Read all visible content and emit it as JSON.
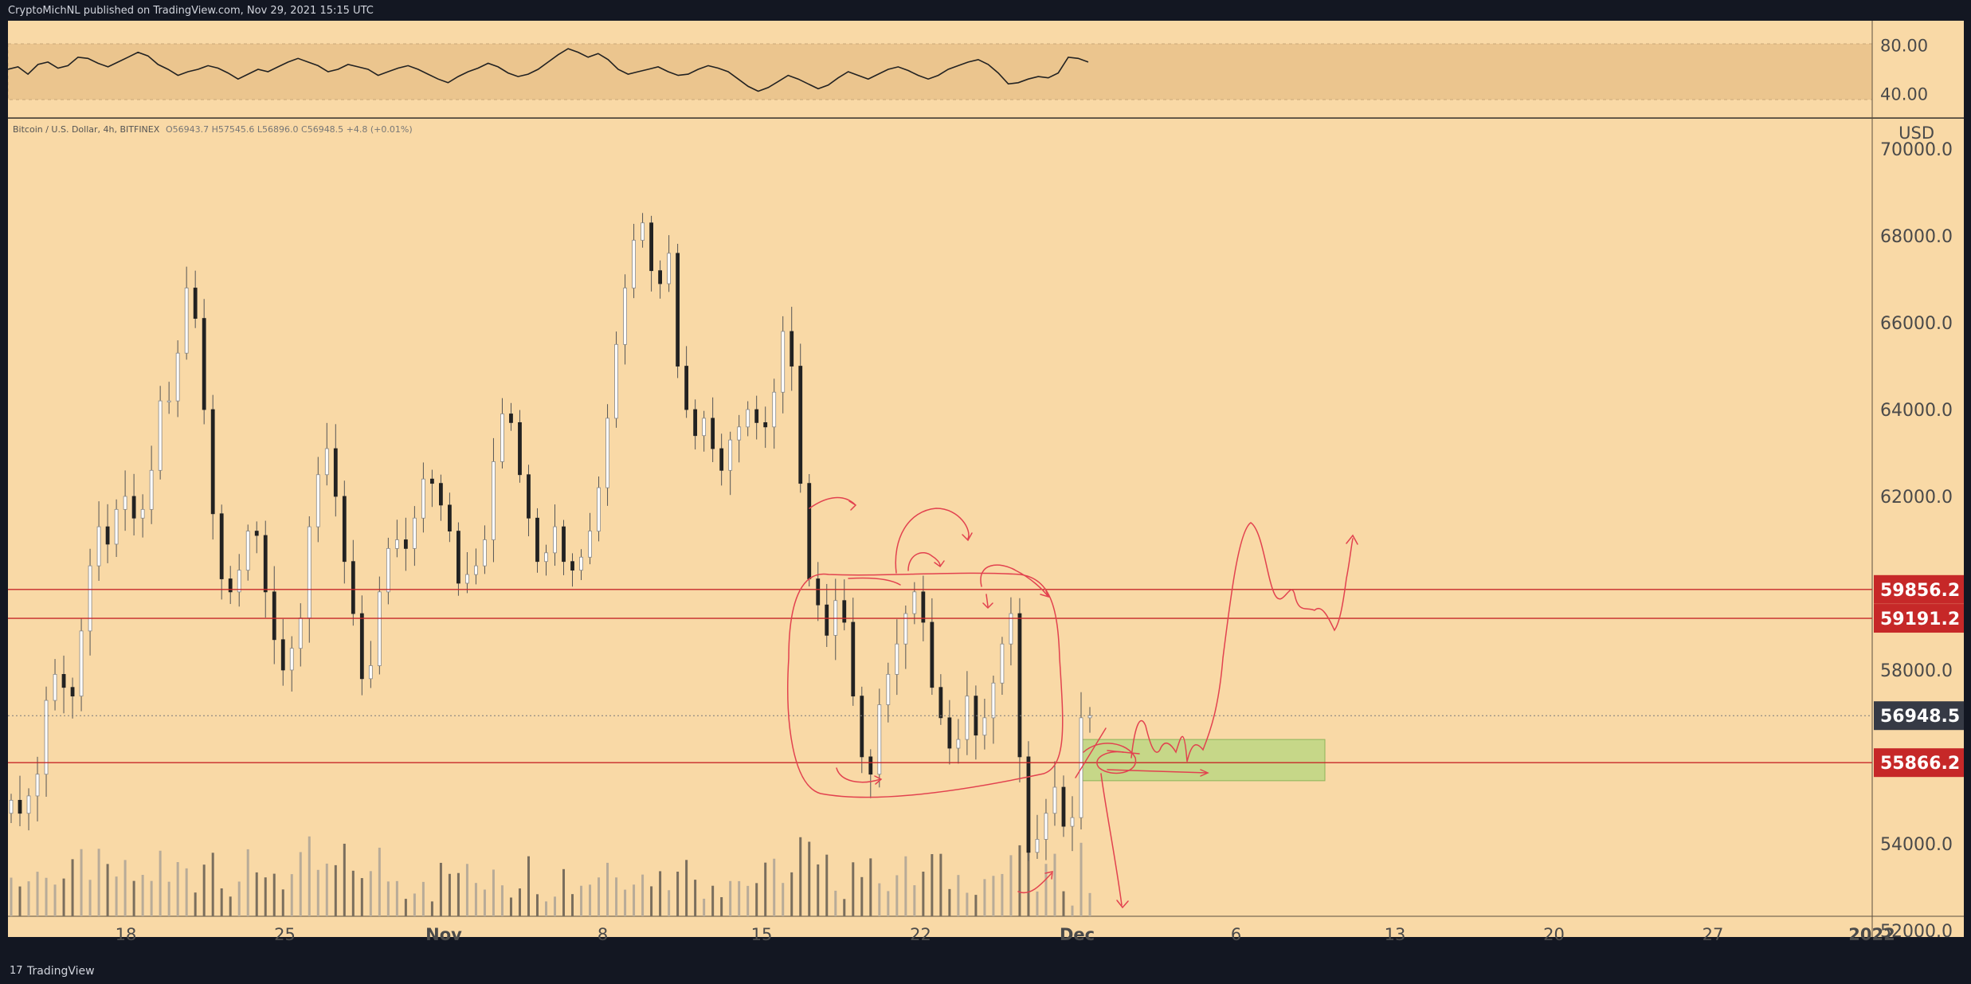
{
  "header": {
    "publisher": "CryptoMichNL published on TradingView.com, Nov 29, 2021 15:15 UTC"
  },
  "legend": {
    "symbol": "Bitcoin / U.S. Dollar, 4h, BITFINEX",
    "ohlc": "O56943.7  H57545.6  L56896.0  C56948.5  +4.8 (+0.01%)"
  },
  "footer": {
    "logo": "17",
    "brand": "TradingView"
  },
  "chart_data": [
    {
      "type": "line",
      "title": "",
      "yticks": [
        "80.00",
        "40.00"
      ],
      "ylim": [
        20,
        100
      ],
      "band": [
        35,
        75
      ],
      "values": [
        60,
        62,
        56,
        64,
        66,
        61,
        63,
        70,
        69,
        65,
        62,
        66,
        70,
        74,
        71,
        64,
        60,
        55,
        58,
        60,
        63,
        61,
        57,
        52,
        56,
        60,
        58,
        62,
        66,
        69,
        66,
        63,
        58,
        60,
        64,
        62,
        60,
        55,
        58,
        61,
        63,
        60,
        56,
        52,
        49,
        54,
        58,
        61,
        65,
        62,
        57,
        54,
        56,
        60,
        66,
        72,
        77,
        74,
        70,
        73,
        68,
        60,
        56,
        58,
        60,
        62,
        58,
        55,
        56,
        60,
        63,
        61,
        58,
        52,
        46,
        42,
        45,
        50,
        55,
        52,
        48,
        44,
        47,
        53,
        58,
        55,
        52,
        56,
        60,
        62,
        59,
        55,
        52,
        55,
        60,
        63,
        66,
        68,
        64,
        57,
        48,
        49,
        52,
        54,
        53,
        57,
        70,
        69,
        66
      ]
    },
    {
      "type": "candlestick",
      "title": "",
      "y_unit": "USD",
      "ylim": [
        51850,
        70700
      ],
      "yticks": [
        "70000.0",
        "68000.0",
        "66000.0",
        "64000.0",
        "62000.0",
        "58000.0",
        "54000.0",
        "52000.0"
      ],
      "xticks": [
        "18",
        "25",
        "Nov",
        "8",
        "15",
        "22",
        "Dec",
        "6",
        "13",
        "20",
        "27",
        "2022"
      ],
      "closes": [
        55000,
        54700,
        55100,
        55600,
        57300,
        57900,
        57600,
        57400,
        58900,
        60400,
        61300,
        60900,
        61700,
        62000,
        61500,
        61700,
        62600,
        64200,
        64200,
        65300,
        66800,
        66100,
        64000,
        61600,
        60100,
        59800,
        60300,
        61200,
        61100,
        59800,
        58700,
        58000,
        58500,
        59200,
        61300,
        62500,
        63100,
        62000,
        60500,
        59300,
        57800,
        58100,
        59800,
        60800,
        61000,
        60800,
        61500,
        62400,
        62300,
        61800,
        61200,
        60000,
        60200,
        60400,
        61000,
        62800,
        63900,
        63700,
        62500,
        61500,
        60500,
        60700,
        61300,
        60500,
        60300,
        60600,
        61200,
        62200,
        63800,
        65500,
        66800,
        67900,
        68300,
        67200,
        66900,
        67600,
        65000,
        64000,
        63400,
        63800,
        63100,
        62600,
        63300,
        63600,
        64000,
        63700,
        63600,
        64400,
        65800,
        65000,
        62300,
        60100,
        59500,
        58800,
        59600,
        59100,
        57400,
        56000,
        55600,
        57200,
        57900,
        58600,
        59300,
        59800,
        59100,
        57600,
        56900,
        56200,
        56400,
        57400,
        56500,
        56900,
        57700,
        58600,
        59300,
        56000,
        53800,
        54100,
        54700,
        55300,
        54400,
        54600,
        56900,
        56949
      ],
      "volume_max_label": "",
      "price_lines": [
        {
          "label": "59856.2",
          "value": 59856.2,
          "color": "#c62828"
        },
        {
          "label": "59191.2",
          "value": 59191.2,
          "color": "#c62828"
        },
        {
          "label": "56948.5",
          "value": 56948.5,
          "color": "#363a45"
        },
        {
          "label": "55866.2",
          "value": 55866.2,
          "color": "#c62828"
        }
      ],
      "zone": {
        "from": 55450,
        "to": 56400,
        "color": "#b4d67d"
      }
    }
  ],
  "colors": {
    "background": "#f9d9a6",
    "annotation": "#e2424f",
    "text": "#4a4a4a"
  }
}
